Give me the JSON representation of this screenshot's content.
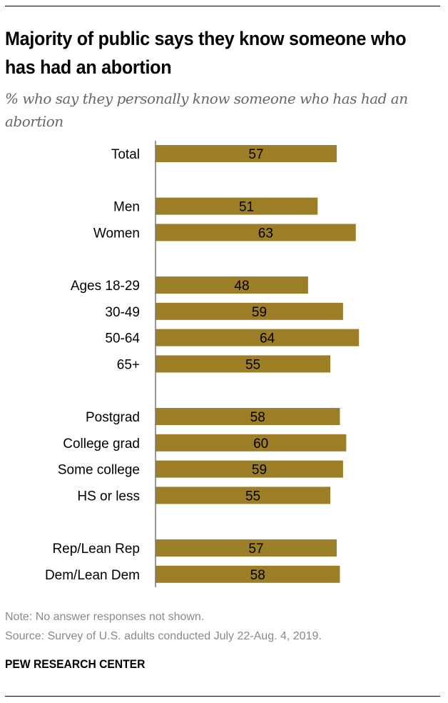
{
  "chart_data": {
    "type": "bar",
    "orientation": "horizontal",
    "title": "Majority of public says they know someone who has had an abortion",
    "subtitle": "% who say they personally know someone who has had an abortion",
    "groups": [
      {
        "categories": [
          "Total"
        ],
        "values": [
          57
        ]
      },
      {
        "categories": [
          "Men",
          "Women"
        ],
        "values": [
          51,
          63
        ]
      },
      {
        "categories": [
          "Ages 18-29",
          "30-49",
          "50-64",
          "65+"
        ],
        "values": [
          48,
          59,
          64,
          55
        ]
      },
      {
        "categories": [
          "Postgrad",
          "College grad",
          "Some college",
          "HS or less"
        ],
        "values": [
          58,
          60,
          59,
          55
        ]
      },
      {
        "categories": [
          "Rep/Lean Rep",
          "Dem/Lean Dem"
        ],
        "values": [
          57,
          58
        ]
      }
    ],
    "xlim": [
      0,
      100
    ],
    "bar_color": "#9c7e27",
    "grid": false
  },
  "footer": {
    "note": "Note: No answer responses not shown.",
    "source": "Source: Survey of U.S. adults conducted July 22-Aug. 4, 2019.",
    "brand": "PEW RESEARCH CENTER"
  }
}
